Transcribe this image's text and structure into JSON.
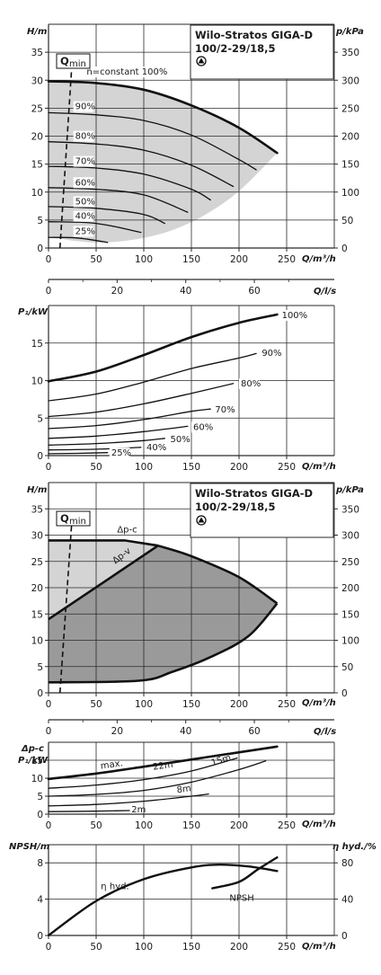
{
  "colors": {
    "curve": "#111111",
    "grid": "#2a2a2a",
    "fill_light": "#d4d4d4",
    "fill_dark": "#9a9a9a",
    "text": "#1a1a1a"
  },
  "pump": {
    "name": "Wilo-Stratos GIGA-D",
    "model": "100/2-29/18,5",
    "symbol": "dual-pump-icon"
  },
  "chart_data": [
    {
      "type": "line",
      "xlabel": "Q/m³/h",
      "ylabel": "H/m",
      "ylabel_right": "p/kPa",
      "xlim": [
        0,
        300
      ],
      "ylim": [
        0,
        40
      ],
      "xticks": [
        "0",
        "50",
        "100",
        "150",
        "200",
        "250"
      ],
      "yticks": [
        "0",
        "5",
        "10",
        "15",
        "20",
        "25",
        "30",
        "35"
      ],
      "yticks_right": [
        "0",
        "50",
        "100",
        "150",
        "200",
        "250",
        "300",
        "350"
      ],
      "qmin_label": "Q",
      "qmin_sub": "min",
      "qmin_line": {
        "x": [
          12,
          25
        ],
        "y": [
          0,
          34
        ]
      },
      "series": [
        {
          "name": "n=constant 100%",
          "x": [
            0,
            50,
            100,
            150,
            200,
            240
          ],
          "y": [
            29.8,
            29.5,
            28.3,
            25.5,
            21.5,
            17.0
          ]
        },
        {
          "name": "90%",
          "x": [
            0,
            50,
            100,
            150,
            200,
            218
          ],
          "y": [
            24.2,
            23.8,
            22.8,
            20.2,
            15.8,
            14.0
          ]
        },
        {
          "name": "80%",
          "x": [
            0,
            50,
            100,
            150,
            194
          ],
          "y": [
            19.0,
            18.6,
            17.5,
            14.8,
            11.0
          ]
        },
        {
          "name": "70%",
          "x": [
            0,
            50,
            100,
            150,
            170
          ],
          "y": [
            14.6,
            14.3,
            13.2,
            10.5,
            8.6
          ]
        },
        {
          "name": "60%",
          "x": [
            0,
            50,
            100,
            146
          ],
          "y": [
            10.8,
            10.5,
            9.5,
            6.4
          ]
        },
        {
          "name": "50%",
          "x": [
            0,
            50,
            100,
            122
          ],
          "y": [
            7.4,
            7.1,
            6.0,
            4.4
          ]
        },
        {
          "name": "40%",
          "x": [
            0,
            50,
            97
          ],
          "y": [
            4.7,
            4.4,
            2.8
          ]
        },
        {
          "name": "25%",
          "x": [
            0,
            30,
            62
          ],
          "y": [
            1.9,
            1.8,
            1.0
          ]
        }
      ],
      "labels": [
        "n=constant 100%",
        "90%",
        "80%",
        "70%",
        "60%",
        "50%",
        "40%",
        "25%"
      ]
    },
    {
      "type": "axis",
      "xlabel": "Q/l/s",
      "xlim": [
        0,
        83.3
      ],
      "xticks": [
        "0",
        "20",
        "40",
        "60"
      ],
      "xtick_values": [
        0,
        20,
        40,
        60
      ]
    },
    {
      "type": "line",
      "xlabel": "Q/m³/h",
      "ylabel": "P₁/kW",
      "xlim": [
        0,
        300
      ],
      "ylim": [
        0,
        20
      ],
      "xticks": [
        "0",
        "50",
        "100",
        "150",
        "200",
        "250"
      ],
      "yticks": [
        "0",
        "5",
        "10",
        "15"
      ],
      "series": [
        {
          "name": "100%",
          "x": [
            0,
            50,
            100,
            150,
            200,
            240
          ],
          "y": [
            9.9,
            11.2,
            13.4,
            15.8,
            17.7,
            18.8
          ]
        },
        {
          "name": "90%",
          "x": [
            0,
            50,
            100,
            150,
            200,
            218
          ],
          "y": [
            7.3,
            8.2,
            9.8,
            11.6,
            13.0,
            13.6
          ]
        },
        {
          "name": "80%",
          "x": [
            0,
            50,
            100,
            150,
            194
          ],
          "y": [
            5.2,
            5.8,
            6.9,
            8.3,
            9.6
          ]
        },
        {
          "name": "70%",
          "x": [
            0,
            50,
            100,
            150,
            170
          ],
          "y": [
            3.6,
            4.0,
            4.8,
            5.9,
            6.2
          ]
        },
        {
          "name": "60%",
          "x": [
            0,
            50,
            100,
            146
          ],
          "y": [
            2.3,
            2.6,
            3.2,
            3.9
          ]
        },
        {
          "name": "50%",
          "x": [
            0,
            50,
            100,
            122
          ],
          "y": [
            1.4,
            1.6,
            2.0,
            2.3
          ]
        },
        {
          "name": "40%",
          "x": [
            0,
            50,
            97
          ],
          "y": [
            0.75,
            0.85,
            1.1
          ]
        },
        {
          "name": "25%",
          "x": [
            0,
            30,
            62
          ],
          "y": [
            0.25,
            0.3,
            0.4
          ]
        }
      ],
      "labels": [
        "100%",
        "90%",
        "80%",
        "70%",
        "60%",
        "50%",
        "40%",
        "25%"
      ]
    },
    {
      "type": "area",
      "xlabel": "Q/m³/h",
      "ylabel": "H/m",
      "ylabel_right": "p/kPa",
      "xlim": [
        0,
        300
      ],
      "ylim": [
        0,
        40
      ],
      "xticks": [
        "0",
        "50",
        "100",
        "150",
        "200",
        "250"
      ],
      "yticks": [
        "0",
        "5",
        "10",
        "15",
        "20",
        "25",
        "30",
        "35"
      ],
      "yticks_right": [
        "0",
        "50",
        "100",
        "150",
        "200",
        "250",
        "300",
        "350"
      ],
      "qmin_label": "Q",
      "qmin_sub": "min",
      "qmin_line": {
        "x": [
          12,
          25
        ],
        "y": [
          0,
          34
        ]
      },
      "dp_c": {
        "name": "Δp-c",
        "x": [
          0,
          80,
          115
        ],
        "y": [
          29,
          29,
          28
        ]
      },
      "dp_v": {
        "name": "Δp-v",
        "x": [
          0,
          115
        ],
        "y": [
          14,
          28
        ]
      },
      "max_curve": {
        "x": [
          115,
          150,
          200,
          240
        ],
        "y": [
          28,
          26,
          22,
          17
        ]
      },
      "min_curve": {
        "x": [
          0,
          95,
          130,
          170,
          210,
          240
        ],
        "y": [
          2,
          2.3,
          4,
          6.8,
          10.8,
          17
        ]
      },
      "label_positions": {
        "dp_c": [
          72,
          30.5
        ],
        "dp_v": [
          70,
          24.5
        ]
      }
    },
    {
      "type": "axis",
      "xlabel": "Q/l/s",
      "xlim": [
        0,
        83.3
      ],
      "xticks": [
        "0",
        "20",
        "40",
        "60"
      ],
      "xtick_values": [
        0,
        20,
        40,
        60
      ]
    },
    {
      "type": "line",
      "xlabel": "Q/m³/h",
      "ylabel": "Δp-c",
      "ylabel2": "P₁/kW",
      "xlim": [
        0,
        300
      ],
      "ylim": [
        0,
        20
      ],
      "xticks": [
        "0",
        "50",
        "100",
        "150",
        "200",
        "250"
      ],
      "yticks": [
        "0",
        "5",
        "10",
        "15"
      ],
      "series": [
        {
          "name": "max.",
          "x": [
            0,
            50,
            100,
            150,
            200,
            240
          ],
          "y": [
            9.8,
            11.3,
            13.2,
            15.2,
            17.2,
            18.8
          ]
        },
        {
          "name": "22m",
          "x": [
            0,
            50,
            100,
            150,
            198
          ],
          "y": [
            7.2,
            8.1,
            9.6,
            12.0,
            15.6
          ]
        },
        {
          "name": "15m",
          "x": [
            0,
            50,
            100,
            150,
            200,
            228
          ],
          "y": [
            5.0,
            5.5,
            6.6,
            8.9,
            12.4,
            14.8
          ]
        },
        {
          "name": "8m",
          "x": [
            0,
            50,
            100,
            150,
            168
          ],
          "y": [
            2.3,
            2.7,
            3.6,
            5.0,
            5.6
          ]
        },
        {
          "name": "2m",
          "x": [
            0,
            40,
            85
          ],
          "y": [
            0.7,
            0.8,
            1.0
          ]
        }
      ],
      "labels": [
        "max.",
        "22m",
        "15m",
        "8m",
        "2m"
      ]
    },
    {
      "type": "line",
      "xlabel": "Q/m³/h",
      "ylabel": "NPSH/m",
      "ylabel_right": "η hyd./%",
      "xlim": [
        0,
        300
      ],
      "ylim": [
        0,
        10
      ],
      "xticks": [
        "0",
        "50",
        "100",
        "150",
        "200",
        "250"
      ],
      "yticks": [
        "0",
        "4",
        "8"
      ],
      "yticks_right": [
        "0",
        "40",
        "80"
      ],
      "series": [
        {
          "name": "η hyd.",
          "axis": "right",
          "x": [
            0,
            50,
            100,
            150,
            180,
            210,
            240
          ],
          "y": [
            0,
            38,
            62,
            75,
            78,
            76,
            71
          ]
        },
        {
          "name": "NPSH",
          "axis": "left",
          "x": [
            172,
            200,
            220,
            240
          ],
          "y": [
            5.2,
            5.9,
            7.3,
            8.6
          ]
        }
      ],
      "labels": [
        "η hyd.",
        "NPSH"
      ]
    }
  ]
}
